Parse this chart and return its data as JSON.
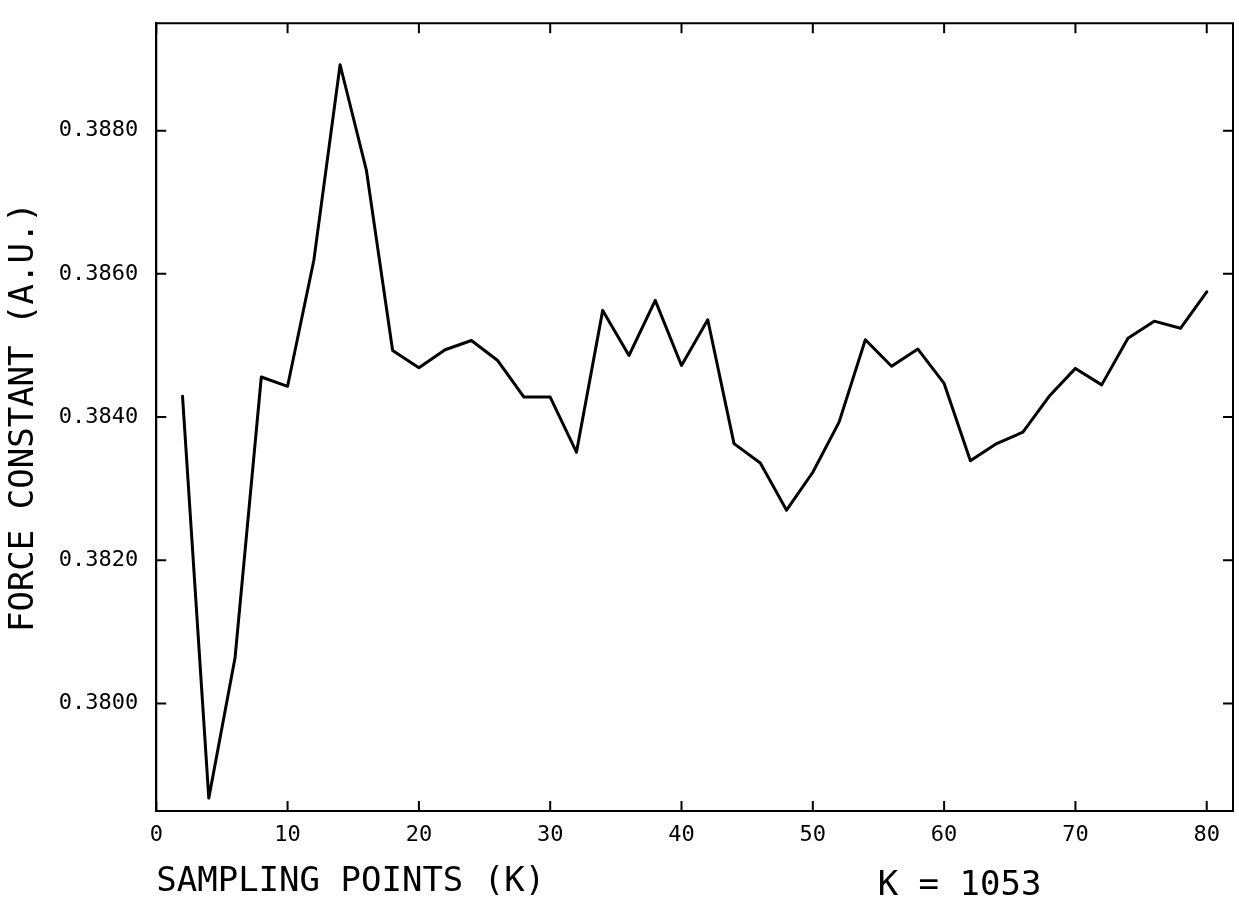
{
  "chart_data": {
    "type": "line",
    "xlabel": "SAMPLING POINTS (K)",
    "ylabel": "FORCE CONSTANT (A.U.)",
    "annotations": [
      "K = 1053"
    ],
    "x": [
      2,
      4,
      6,
      8,
      10,
      12,
      14,
      16,
      18,
      20,
      22,
      24,
      26,
      28,
      30,
      32,
      34,
      36,
      38,
      40,
      42,
      44,
      46,
      48,
      50,
      52,
      54,
      56,
      58,
      60,
      62,
      64,
      66,
      68,
      70,
      72,
      74,
      76,
      78,
      80
    ],
    "series": [
      {
        "color": "#000000",
        "values": [
          0.38429,
          0.37868,
          0.38064,
          0.38456,
          0.38443,
          0.38619,
          0.38892,
          0.38745,
          0.38493,
          0.38469,
          0.38494,
          0.38507,
          0.38479,
          0.38428,
          0.38428,
          0.38351,
          0.38549,
          0.38486,
          0.38563,
          0.38472,
          0.38536,
          0.38363,
          0.38336,
          0.3827,
          0.38323,
          0.38393,
          0.38508,
          0.38471,
          0.38495,
          0.38447,
          0.38339,
          0.38363,
          0.38379,
          0.38429,
          0.38468,
          0.38445,
          0.3851,
          0.38534,
          0.38524,
          0.38575
        ]
      }
    ],
    "xlim": [
      0,
      82
    ],
    "xticks": [
      0,
      10,
      20,
      30,
      40,
      50,
      60,
      70,
      80
    ],
    "ylim": [
      0.3785,
      0.3895
    ],
    "yticks": [
      {
        "value": 0.38,
        "label": "0.3800"
      },
      {
        "value": 0.382,
        "label": "0.3820"
      },
      {
        "value": 0.384,
        "label": "0.3840"
      },
      {
        "value": 0.386,
        "label": "0.3860"
      },
      {
        "value": 0.388,
        "label": "0.3880"
      }
    ],
    "grid": false,
    "legend": false,
    "marker": "none",
    "line_style": "solid"
  }
}
